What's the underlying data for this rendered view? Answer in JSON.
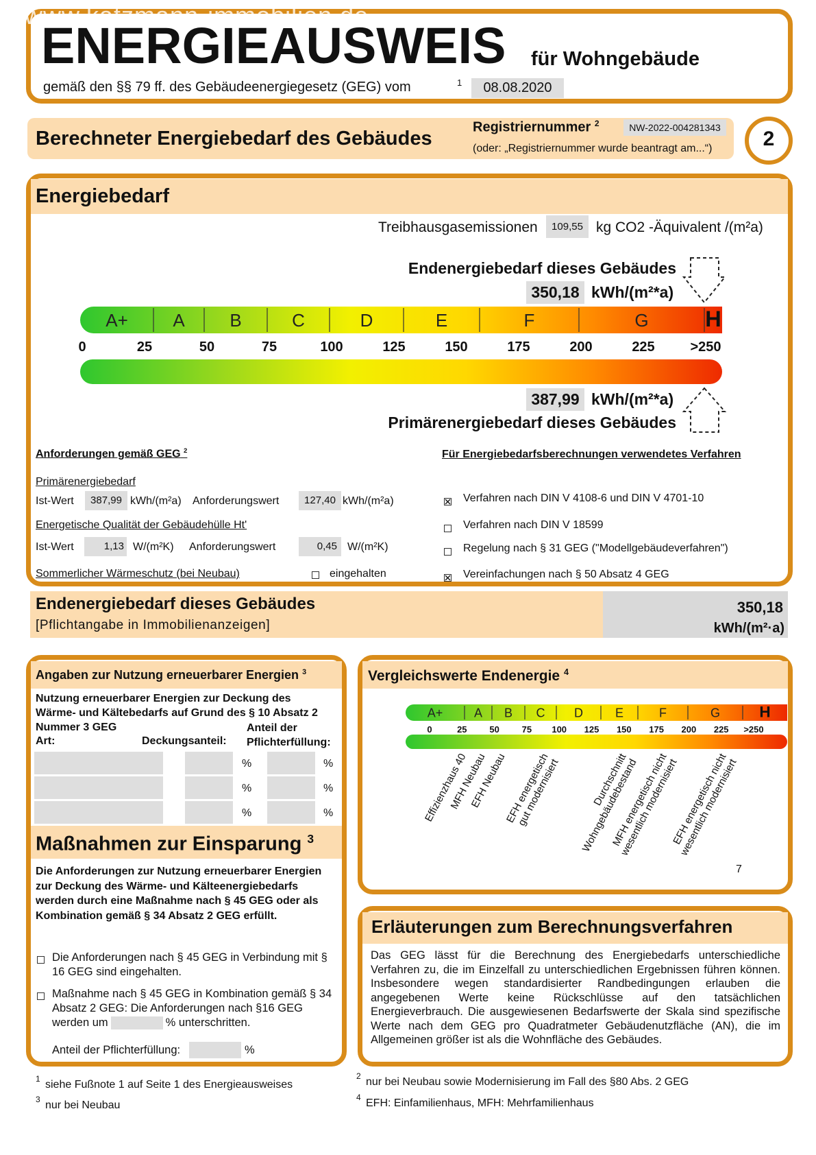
{
  "watermark": "www.katzmann-immobilien.de",
  "header": {
    "title": "ENERGIEAUSWEIS",
    "subtitle": "für Wohngebäude",
    "basis": "gemäß den §§ 79 ff. des Gebäudeenergiegesetz (GEG) vom",
    "basis_note": "1",
    "date": "08.08.2020"
  },
  "banner": {
    "title": "Berechneter Energiebedarf des Gebäudes",
    "registration_label": "Registriernummer",
    "registration_note": "2",
    "registration_number": "NW-2022-004281343",
    "registration_hint": "(oder: „Registriernummer wurde beantragt am...“)",
    "page_number": "2"
  },
  "energy_demand": {
    "title": "Energiebedarf",
    "emissions_label": "Treibhausgasemissionen",
    "emissions_value": "109,55",
    "emissions_unit": "kg CO2 -Äquivalent /(m²a)",
    "final_label": "Endenergiebedarf dieses Gebäudes",
    "final_value": "350,18",
    "final_unit": "kWh/(m²*a)",
    "classes": [
      "A+",
      "A",
      "B",
      "C",
      "D",
      "E",
      "F",
      "G",
      "H"
    ],
    "scale": [
      "0",
      "25",
      "50",
      "75",
      "100",
      "125",
      "150",
      "175",
      "200",
      "225",
      ">250"
    ],
    "primary_value": "387,99",
    "primary_unit": "kWh/(m²*a)",
    "primary_label": "Primärenergiebedarf dieses Gebäudes"
  },
  "requirements": {
    "title": "Anforderungen gemäß GEG",
    "title_note": "2",
    "primary_heading": "Primärenergiebedarf",
    "primary_actual_label": "Ist-Wert",
    "primary_actual": "387,99",
    "primary_actual_unit": "kWh/(m²a)",
    "primary_required_label": "Anforderungswert",
    "primary_required": "127,40",
    "primary_required_unit": "kWh/(m²a)",
    "envelope_heading": "Energetische Qualität der Gebäudehülle Ht'",
    "envelope_actual_label": "Ist-Wert",
    "envelope_actual": "1,13",
    "envelope_actual_unit": "W/(m²K)",
    "envelope_required_label": "Anforderungswert",
    "envelope_required": "0,45",
    "envelope_required_unit": "W/(m²K)",
    "summer_heading": "Sommerlicher Wärmeschutz (bei Neubau)",
    "summer_option": "eingehalten",
    "summer_checked": false
  },
  "methods": {
    "title": "Für Energiebedarfsberechnungen verwendetes Verfahren",
    "options": [
      {
        "label": "Verfahren nach DIN V 4108-6 und DIN V 4701-10",
        "checked": true
      },
      {
        "label": "Verfahren nach DIN V 18599",
        "checked": false
      },
      {
        "label": "Regelung nach § 31 GEG (\"Modellgebäudeverfahren\")",
        "checked": false
      },
      {
        "label": "Vereinfachungen nach § 50 Absatz 4 GEG",
        "checked": true
      }
    ]
  },
  "final_energy": {
    "title": "Endenergiebedarf dieses Gebäudes",
    "note": "[Pflichtangabe in Immobilienanzeigen]",
    "value": "350,18",
    "unit": "kWh/(m²·a)"
  },
  "renewables": {
    "title": "Angaben zur Nutzung erneuerbarer Energien",
    "title_note": "3",
    "intro": "Nutzung erneuerbarer Energien zur Deckung des Wärme- und Kältebedarfs auf Grund des § 10 Absatz 2 Nummer 3 GEG",
    "type_label": "Art:",
    "share_label": "Deckungsanteil:",
    "compliance_label": "Anteil der Pflichterfüllung:",
    "rows": [
      {
        "share_unit": "%",
        "compliance_unit": "%"
      },
      {
        "share_unit": "%",
        "compliance_unit": "%"
      },
      {
        "share_unit": "%",
        "compliance_unit": "%"
      }
    ]
  },
  "measures": {
    "title": "Maßnahmen zur Einsparung",
    "title_note": "3",
    "intro": "Die Anforderungen zur Nutzung erneuerbarer Energien zur Deckung des Wärme- und Kälteenergiebedarfs werden durch eine Maßnahme nach § 45 GEG oder als Kombination gemäß § 34 Absatz 2 GEG erfüllt.",
    "option_1": "Die Anforderungen nach § 45 GEG in Verbindung mit § 16 GEG sind eingehalten.",
    "option_1_checked": false,
    "option_2_before": "Maßnahme nach § 45 GEG in Kombination gemäß § 34 Absatz 2 GEG: Die Anforderungen nach §16 GEG werden um",
    "option_2_after": "% unterschritten.",
    "option_2_checked": false,
    "compliance_label": "Anteil der Pflichterfüllung:",
    "compliance_unit": "%"
  },
  "comparison": {
    "title": "Vergleichswerte Endenergie",
    "title_note": "4",
    "classes": [
      "A+",
      "A",
      "B",
      "C",
      "D",
      "E",
      "F",
      "G",
      "H"
    ],
    "scale": [
      "0",
      "25",
      "50",
      "75",
      "100",
      "125",
      "150",
      "175",
      "200",
      "225",
      ">250"
    ],
    "references": [
      [
        "Effizienzhaus 40"
      ],
      [
        "MFH Neubau"
      ],
      [
        "EFH Neubau"
      ],
      [
        "EFH energetisch",
        "gut modernisiert"
      ],
      [
        "Durchschnitt",
        "Wohngebäudebestand"
      ],
      [
        "MFH energetisch nicht",
        "wesentlich modernisiert"
      ],
      [
        "EFH energetisch nicht",
        "wesentlich modernisiert"
      ]
    ],
    "footnote_marker": "7"
  },
  "explanation": {
    "title": "Erläuterungen zum Berechnungsverfahren",
    "text": "Das GEG lässt für die Berechnung des Energiebedarfs unterschiedliche Verfahren zu, die im Einzelfall zu unterschiedlichen Ergebnissen führen können. Insbesondere wegen standardisierter Randbedingungen erlauben die angegebenen Werte keine Rückschlüsse auf den tatsächlichen Energieverbrauch. Die ausgewiesenen Bedarfswerte der Skala sind spezifische Werte nach dem GEG pro Quadratmeter Gebäudenutzfläche (AN), die im Allgemeinen größer ist als die Wohnfläche des Gebäudes."
  },
  "footnotes": [
    {
      "marker": "1",
      "text": "siehe Fußnote 1 auf Seite 1 des Energieausweises"
    },
    {
      "marker": "3",
      "text": "nur bei Neubau"
    },
    {
      "marker": "2",
      "text": "nur bei Neubau sowie Modernisierung im Fall des §80 Abs. 2 GEG"
    },
    {
      "marker": "4",
      "text": "EFH: Einfamilienhaus, MFH: Mehrfamilienhaus"
    }
  ]
}
